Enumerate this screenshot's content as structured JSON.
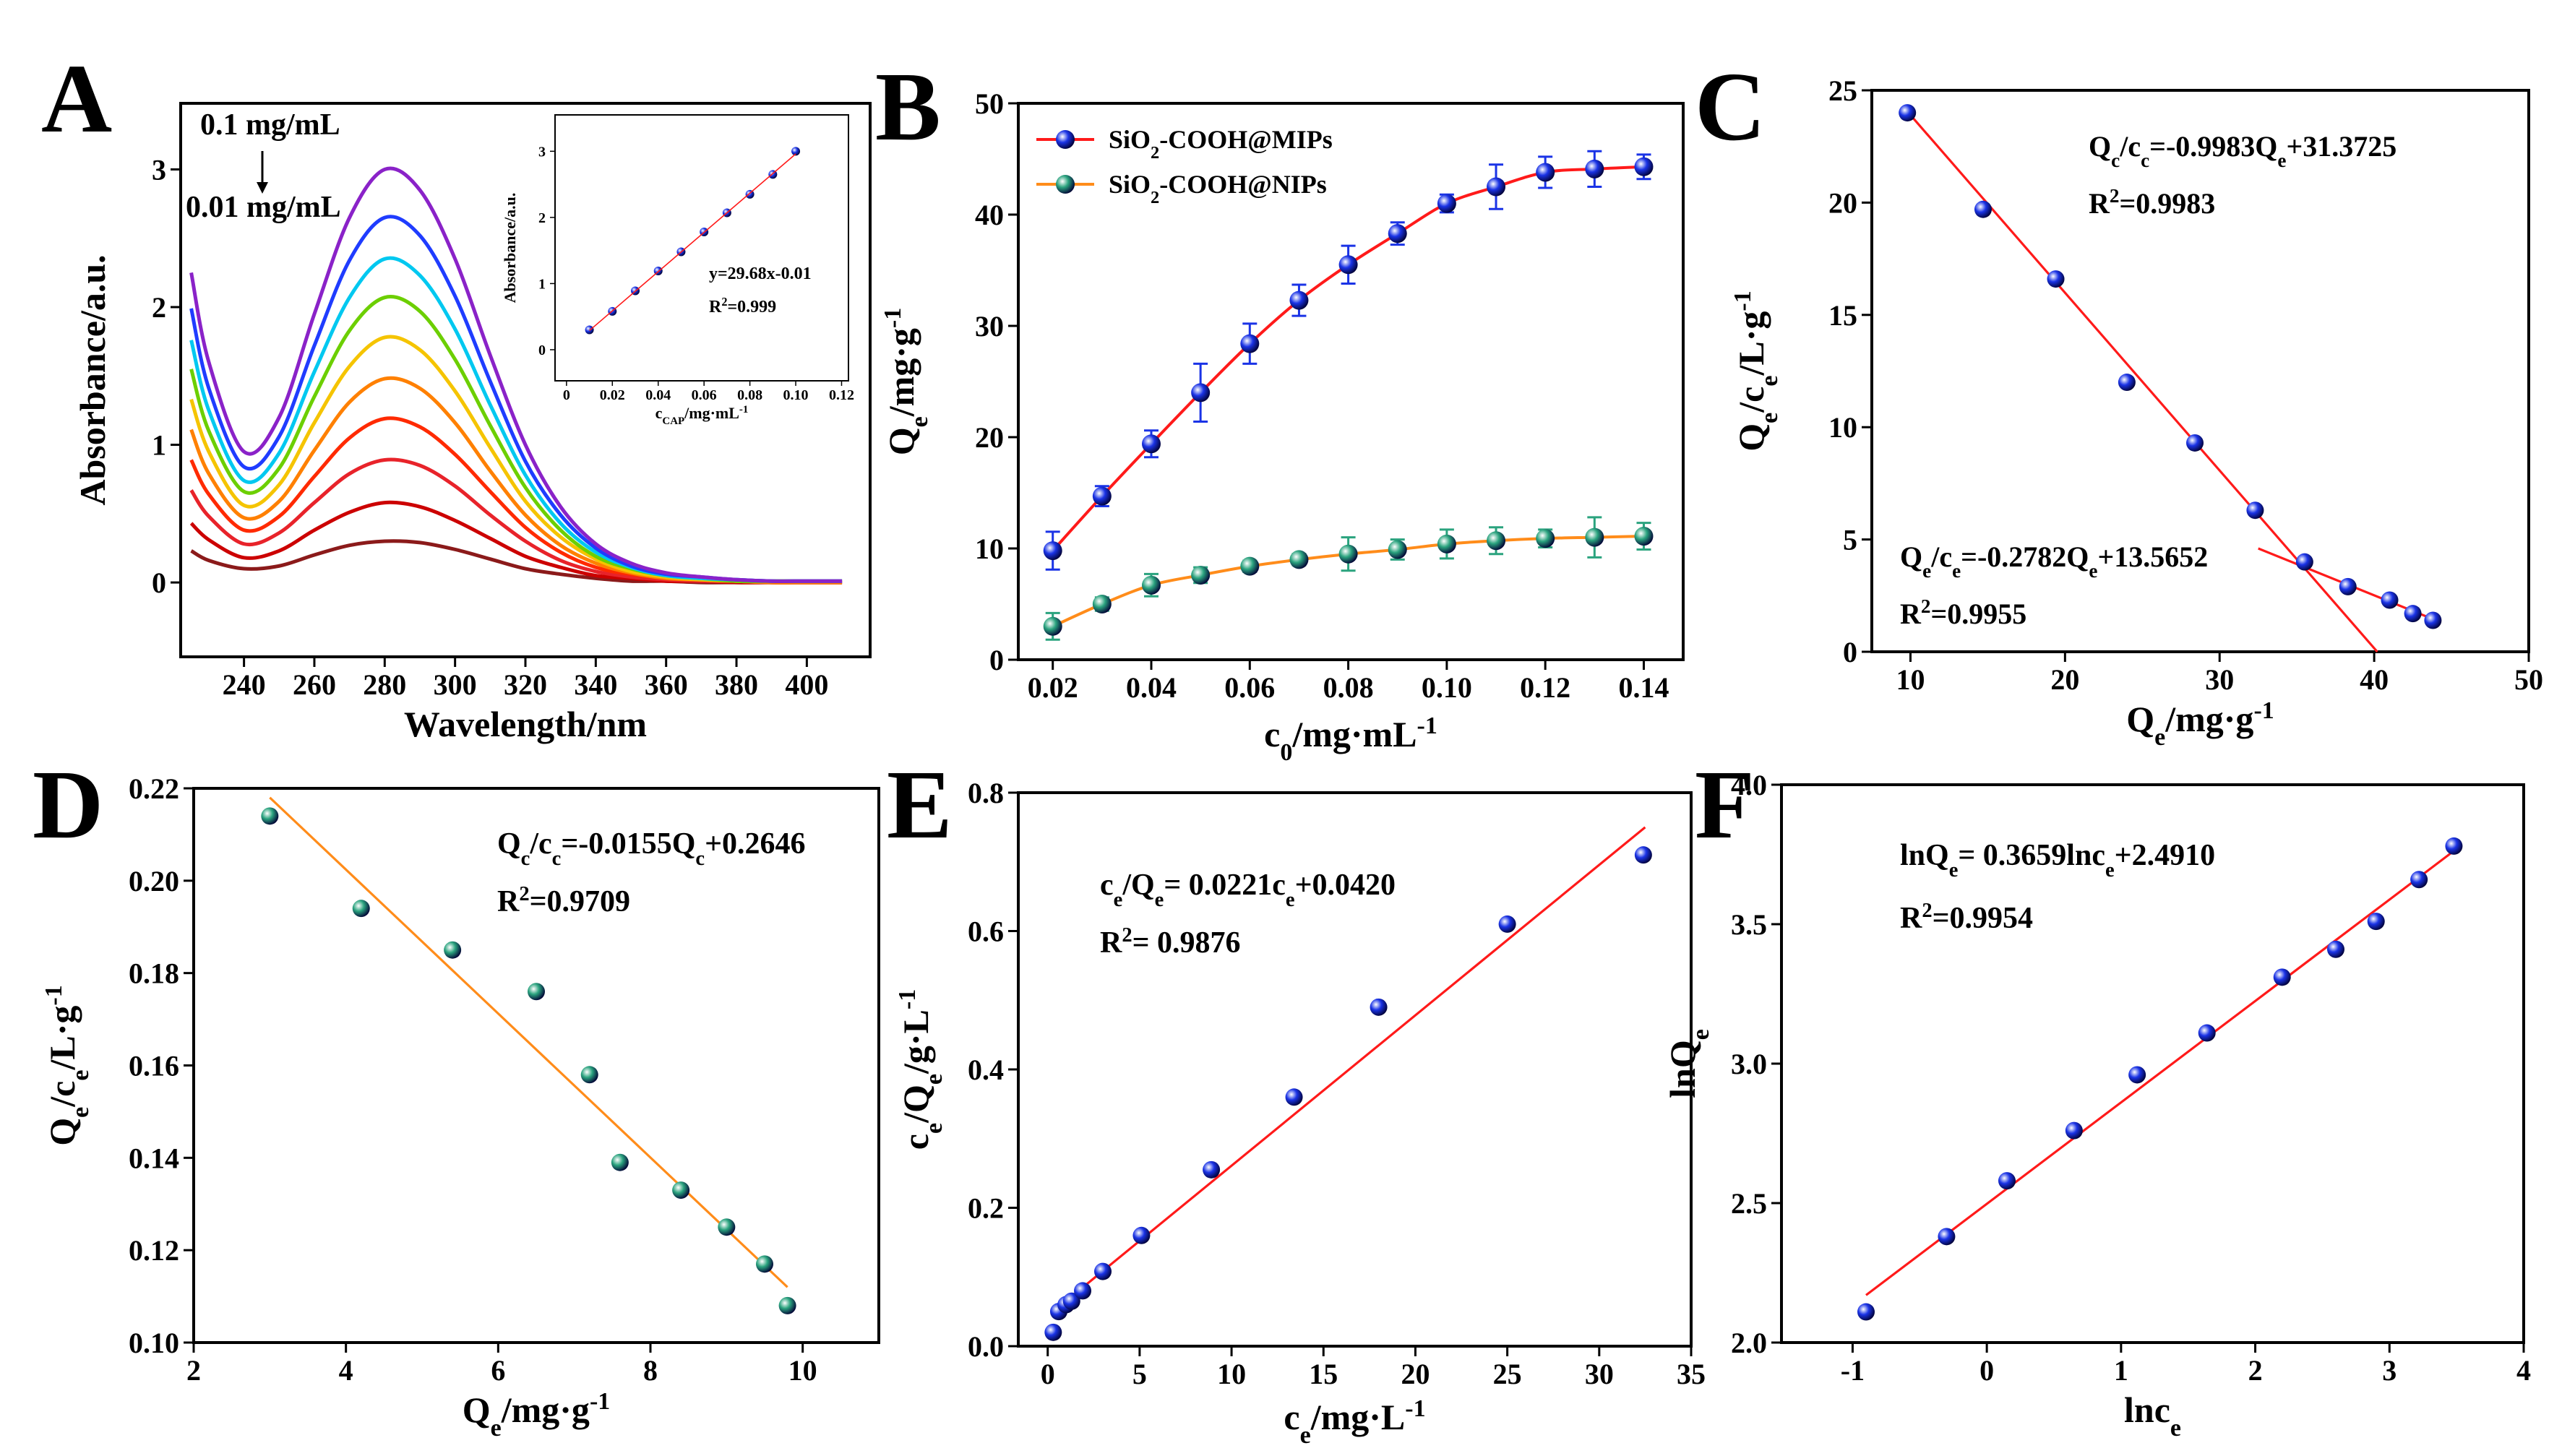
{
  "chart_data": [
    {
      "type": "line",
      "panel": "A",
      "xlabel": "Wavelength/nm",
      "ylabel": "Absorbance/a.u.",
      "x": [
        225,
        230,
        240,
        250,
        260,
        270,
        280,
        290,
        300,
        310,
        320,
        330,
        340,
        350,
        360,
        370,
        380,
        390,
        400,
        410
      ],
      "xlim": [
        222,
        418
      ],
      "xticks": [
        240,
        260,
        280,
        300,
        320,
        340,
        360,
        380,
        400
      ],
      "ylim": [
        -0.54,
        3.48
      ],
      "yticks": [
        0,
        1,
        2,
        3
      ],
      "annotations": [
        "0.1 mg/mL",
        "0.01 mg/mL"
      ],
      "series": [
        {
          "color": "#8b1a1a",
          "values": [
            0.23,
            0.16,
            0.1,
            0.12,
            0.2,
            0.27,
            0.3,
            0.29,
            0.24,
            0.17,
            0.1,
            0.06,
            0.03,
            0.01,
            0.01,
            0,
            0,
            0,
            0,
            0
          ]
        },
        {
          "color": "#cc0000",
          "values": [
            0.43,
            0.31,
            0.18,
            0.23,
            0.38,
            0.51,
            0.58,
            0.55,
            0.45,
            0.32,
            0.19,
            0.11,
            0.05,
            0.03,
            0.01,
            0.01,
            0,
            0,
            0,
            0
          ]
        },
        {
          "color": "#e8232a",
          "values": [
            0.67,
            0.48,
            0.28,
            0.36,
            0.58,
            0.79,
            0.89,
            0.85,
            0.7,
            0.49,
            0.3,
            0.16,
            0.08,
            0.04,
            0.02,
            0.01,
            0.01,
            0,
            0,
            0
          ]
        },
        {
          "color": "#ff2a00",
          "values": [
            0.89,
            0.64,
            0.38,
            0.48,
            0.77,
            1.05,
            1.19,
            1.13,
            0.93,
            0.66,
            0.4,
            0.22,
            0.11,
            0.06,
            0.03,
            0.02,
            0.01,
            0,
            0,
            0
          ]
        },
        {
          "color": "#ff8000",
          "values": [
            1.11,
            0.79,
            0.47,
            0.59,
            0.96,
            1.31,
            1.48,
            1.41,
            1.16,
            0.81,
            0.49,
            0.27,
            0.14,
            0.07,
            0.03,
            0.02,
            0.01,
            0,
            0,
            0
          ]
        },
        {
          "color": "#f5c400",
          "values": [
            1.33,
            0.95,
            0.56,
            0.71,
            1.16,
            1.57,
            1.78,
            1.69,
            1.39,
            0.98,
            0.59,
            0.33,
            0.17,
            0.08,
            0.04,
            0.02,
            0.01,
            0.01,
            0.01,
            0.01
          ]
        },
        {
          "color": "#6ccf00",
          "values": [
            1.55,
            1.1,
            0.66,
            0.83,
            1.35,
            1.83,
            2.07,
            1.97,
            1.62,
            1.14,
            0.69,
            0.38,
            0.19,
            0.1,
            0.05,
            0.03,
            0.01,
            0.01,
            0.01,
            0.01
          ]
        },
        {
          "color": "#00c8f0",
          "values": [
            1.76,
            1.25,
            0.74,
            0.94,
            1.53,
            2.07,
            2.35,
            2.23,
            1.84,
            1.29,
            0.78,
            0.43,
            0.22,
            0.11,
            0.05,
            0.03,
            0.02,
            0.01,
            0.01,
            0.01
          ]
        },
        {
          "color": "#1f3cff",
          "values": [
            1.99,
            1.41,
            0.84,
            1.06,
            1.72,
            2.34,
            2.65,
            2.52,
            2.08,
            1.46,
            0.88,
            0.49,
            0.25,
            0.12,
            0.06,
            0.04,
            0.02,
            0.01,
            0.01,
            0.01
          ]
        },
        {
          "color": "#8a22c8",
          "values": [
            2.25,
            1.6,
            0.95,
            1.2,
            1.95,
            2.65,
            3.0,
            2.85,
            2.35,
            1.65,
            1.0,
            0.55,
            0.28,
            0.14,
            0.07,
            0.04,
            0.02,
            0.01,
            0.01,
            0.01
          ]
        }
      ]
    },
    {
      "type": "scatter",
      "xlabel": [
        "c",
        {
          "sub": "CAP"
        },
        "/mg·mL",
        {
          "sup": "-1"
        }
      ],
      "ylabel": "Absorbance/a.u.",
      "xlim": [
        -0.005,
        0.123
      ],
      "xticks": [
        0,
        0.02,
        0.04,
        0.06,
        0.08,
        {
          "value": 0.1,
          "label": "0.10"
        },
        0.12
      ],
      "ylim": [
        -0.47,
        3.55
      ],
      "yticks": [
        0,
        1,
        2,
        3
      ],
      "annotations": [
        "y=29.68x-0.01",
        [
          "R",
          {
            "sup": "2"
          },
          "=0.999"
        ]
      ],
      "series": [
        {
          "color": "#1a33e6",
          "x": [
            0.01,
            0.02,
            0.03,
            0.04,
            0.05,
            0.06,
            0.07,
            0.08,
            0.09,
            0.1
          ],
          "values": [
            0.3,
            0.58,
            0.89,
            1.19,
            1.48,
            1.78,
            2.07,
            2.35,
            2.65,
            3.0
          ]
        },
        {
          "type": "line",
          "color": "#ff1a1a",
          "x": [
            0.01,
            0.1
          ],
          "values": [
            0.29,
            2.96
          ]
        }
      ]
    },
    {
      "type": "scatter",
      "panel": "B",
      "xlabel": [
        "c",
        {
          "sub": "0"
        },
        "/mg·mL",
        {
          "sup": "-1"
        }
      ],
      "ylabel": [
        "Q",
        {
          "sub": "e"
        },
        "/mg·g",
        {
          "sup": "-1"
        }
      ],
      "xlim": [
        0.013,
        0.148
      ],
      "xticks": [
        0.02,
        0.04,
        0.06,
        0.08,
        {
          "value": 0.1,
          "label": "0.10"
        },
        0.12,
        0.14
      ],
      "ylim": [
        0,
        50
      ],
      "yticks": [
        0,
        10,
        20,
        30,
        40,
        50
      ],
      "legend": "upper left",
      "x": [
        0.02,
        0.03,
        0.04,
        0.05,
        0.06,
        0.07,
        0.08,
        0.09,
        0.1,
        0.11,
        0.12,
        0.13,
        0.14
      ],
      "series": [
        {
          "name": [
            "SiO",
            {
              "sub": "2"
            },
            "-COOH@MIPs"
          ],
          "color": "#1a33e6",
          "line_color": "#ff1a1a",
          "values": [
            9.8,
            14.7,
            19.4,
            24,
            28.4,
            32.3,
            35.5,
            38.3,
            41,
            42.5,
            43.8,
            44.1,
            44.3
          ],
          "errors": [
            1.7,
            0.9,
            1.2,
            2.6,
            1.8,
            1.4,
            1.7,
            1.0,
            0.8,
            2.0,
            1.4,
            1.6,
            1.1
          ]
        },
        {
          "name": [
            "SiO",
            {
              "sub": "2"
            },
            "-COOH@NIPs"
          ],
          "color": "#2aa37e",
          "line_color": "#ff8c1a",
          "values": [
            3.0,
            5.0,
            6.7,
            7.6,
            8.4,
            9.0,
            9.5,
            9.9,
            10.4,
            10.7,
            10.9,
            11.0,
            11.1
          ],
          "errors": [
            1.2,
            0.6,
            1.0,
            0.7,
            0.5,
            0.5,
            1.5,
            0.9,
            1.3,
            1.2,
            0.8,
            1.8,
            1.2
          ]
        }
      ]
    },
    {
      "type": "scatter",
      "panel": "C",
      "xlabel": [
        "Q",
        {
          "sub": "e"
        },
        "/mg·g",
        {
          "sup": "-1"
        }
      ],
      "ylabel": [
        "Q",
        {
          "sub": "e"
        },
        "/c",
        {
          "sub": "e"
        },
        "/L·g",
        {
          "sup": "-1"
        }
      ],
      "xlim": [
        7.5,
        50
      ],
      "xticks": [
        10,
        20,
        30,
        40,
        50
      ],
      "ylim": [
        0,
        25
      ],
      "yticks": [
        0,
        5,
        10,
        15,
        20,
        25
      ],
      "annotations": [
        [
          "Q",
          {
            "sub": "c"
          },
          "/c",
          {
            "sub": "c"
          },
          "=-0.9983Q",
          {
            "sub": "e"
          },
          "+31.3725"
        ],
        [
          "R",
          {
            "sup": "2"
          },
          "=0.9983"
        ],
        [
          "Q",
          {
            "sub": "e"
          },
          "/c",
          {
            "sub": "e"
          },
          "=-0.2782Q",
          {
            "sub": "e"
          },
          "+13.5652"
        ],
        [
          "R",
          {
            "sup": "2"
          },
          "=0.9955"
        ]
      ],
      "series": [
        {
          "type": "line",
          "color": "#ff1a1a",
          "x": [
            10,
            40.2
          ],
          "values": [
            23.9,
            0
          ]
        },
        {
          "type": "line",
          "color": "#ff1a1a",
          "x": [
            32.5,
            44
          ],
          "values": [
            4.6,
            1.4
          ]
        },
        {
          "color": "#1a33e6",
          "x": [
            9.8,
            14.7,
            19.4,
            24,
            28.4,
            32.3,
            35.5,
            38.3,
            41,
            42.5,
            43.8
          ],
          "values": [
            24,
            19.7,
            16.6,
            12,
            9.3,
            6.3,
            4.0,
            2.9,
            2.3,
            1.7,
            1.4
          ]
        }
      ]
    },
    {
      "type": "scatter",
      "panel": "D",
      "xlabel": [
        "Q",
        {
          "sub": "e"
        },
        "/mg·g",
        {
          "sup": "-1"
        }
      ],
      "ylabel": [
        "Q",
        {
          "sub": "e"
        },
        "/c",
        {
          "sub": "e"
        },
        "/L·g",
        {
          "sup": "-1"
        }
      ],
      "xlim": [
        2,
        11
      ],
      "xticks": [
        2,
        4,
        6,
        8,
        10
      ],
      "ylim": [
        0.1,
        0.22
      ],
      "yticks": [
        {
          "value": 0.1,
          "label": "0.10"
        },
        0.12,
        0.14,
        0.16,
        0.18,
        {
          "value": 0.2,
          "label": "0.20"
        },
        0.22
      ],
      "annotations": [
        [
          "Q",
          {
            "sub": "c"
          },
          "/c",
          {
            "sub": "c"
          },
          "=-0.0155Q",
          {
            "sub": "c"
          },
          "+0.2646"
        ],
        [
          "R",
          {
            "sup": "2"
          },
          "=0.9709"
        ]
      ],
      "series": [
        {
          "type": "line",
          "color": "#ff8c1a",
          "x": [
            3,
            9.8
          ],
          "values": [
            0.218,
            0.112
          ]
        },
        {
          "color": "#2aa37e",
          "x": [
            3.0,
            4.2,
            5.4,
            6.5,
            7.2,
            7.6,
            8.4,
            9.0,
            9.5,
            9.8
          ],
          "values": [
            0.214,
            0.194,
            0.185,
            0.176,
            0.158,
            0.139,
            0.133,
            0.125,
            0.117,
            0.108
          ]
        }
      ]
    },
    {
      "type": "scatter",
      "panel": "E",
      "xlabel": [
        "c",
        {
          "sub": "e"
        },
        "/mg·L",
        {
          "sup": "-1"
        }
      ],
      "ylabel": [
        "c",
        {
          "sub": "e"
        },
        "/Q",
        {
          "sub": "e"
        },
        "/g·L",
        {
          "sup": "-1"
        }
      ],
      "xlim": [
        -1.6,
        35
      ],
      "xticks": [
        0,
        5,
        10,
        15,
        20,
        25,
        30,
        35
      ],
      "ylim": [
        0,
        0.8
      ],
      "yticks": [
        {
          "value": 0,
          "label": "0.0"
        },
        0.2,
        0.4,
        0.6,
        0.8
      ],
      "annotations": [
        [
          "c",
          {
            "sub": "e"
          },
          "/Q",
          {
            "sub": "e"
          },
          "= 0.0221c",
          {
            "sub": "e"
          },
          "+0.0420"
        ],
        [
          "R",
          {
            "sup": "2"
          },
          "= 0.9876"
        ]
      ],
      "series": [
        {
          "type": "line",
          "color": "#ff1a1a",
          "x": [
            0.3,
            32.5
          ],
          "values": [
            0.05,
            0.75
          ]
        },
        {
          "color": "#1a33e6",
          "x": [
            0.3,
            0.6,
            1.0,
            1.3,
            1.9,
            3.0,
            5.1,
            8.9,
            13.4,
            18,
            25,
            32.4
          ],
          "values": [
            0.02,
            0.05,
            0.06,
            0.065,
            0.08,
            0.108,
            0.16,
            0.255,
            0.36,
            0.49,
            0.61,
            0.71
          ]
        }
      ]
    },
    {
      "type": "scatter",
      "panel": "F",
      "xlabel": [
        "lnc",
        {
          "sub": "e"
        }
      ],
      "ylabel": [
        "lnQ",
        {
          "sub": "e"
        }
      ],
      "xlim": [
        -1.53,
        4
      ],
      "xticks": [
        -1,
        0,
        1,
        2,
        3,
        4
      ],
      "ylim": [
        2,
        4
      ],
      "yticks": [
        {
          "value": 2,
          "label": "2.0"
        },
        2.5,
        {
          "value": 3,
          "label": "3.0"
        },
        3.5,
        {
          "value": 4,
          "label": "4.0"
        }
      ],
      "annotations": [
        [
          "lnQ",
          {
            "sub": "e"
          },
          "= 0.3659lnc",
          {
            "sub": "e"
          },
          "+2.4910"
        ],
        [
          "R",
          {
            "sup": "2"
          },
          "=0.9954"
        ]
      ],
      "series": [
        {
          "type": "line",
          "color": "#ff1a1a",
          "x": [
            -0.9,
            3.5
          ],
          "values": [
            2.17,
            3.77
          ]
        },
        {
          "color": "#1a33e6",
          "x": [
            -0.9,
            -0.3,
            0.15,
            0.65,
            1.12,
            1.64,
            2.2,
            2.6,
            2.9,
            3.22,
            3.48
          ],
          "values": [
            2.11,
            2.38,
            2.58,
            2.76,
            2.96,
            3.11,
            3.31,
            3.41,
            3.51,
            3.66,
            3.78
          ]
        }
      ]
    }
  ]
}
